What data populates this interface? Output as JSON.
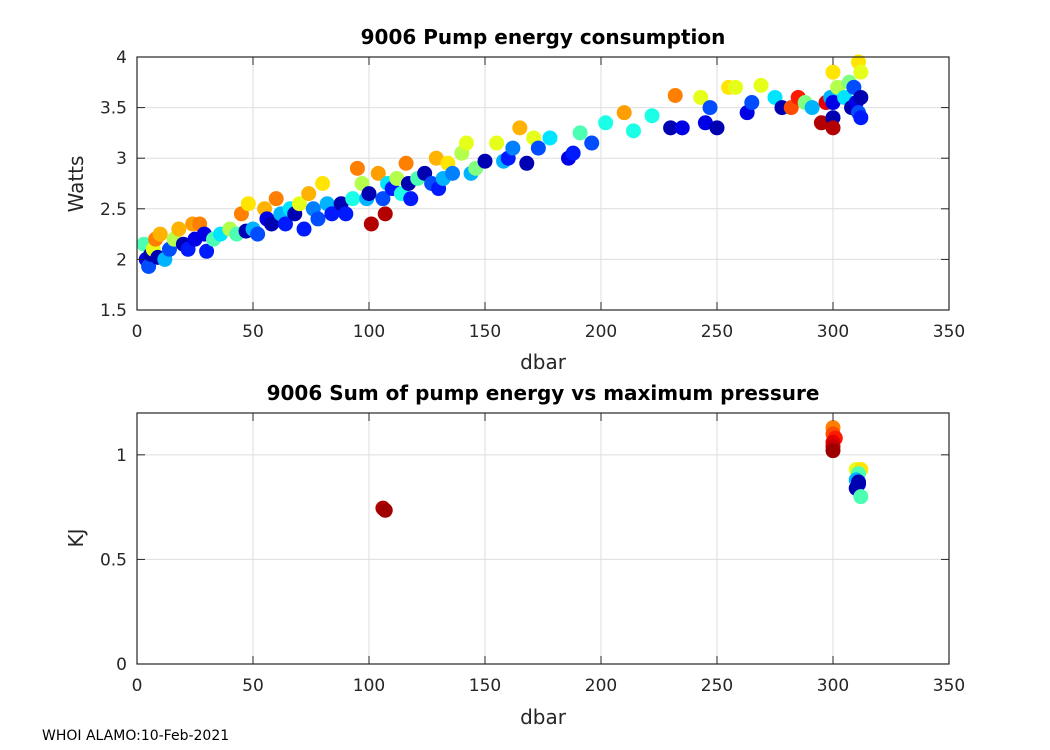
{
  "footer": "WHOI ALAMO:10-Feb-2021",
  "chart_data": [
    {
      "type": "scatter",
      "title": "9006 Pump energy consumption",
      "xlabel": "dbar",
      "ylabel": "Watts",
      "xlim": [
        0,
        350
      ],
      "ylim": [
        1.5,
        4
      ],
      "xticks": [
        0,
        50,
        100,
        150,
        200,
        250,
        300,
        350
      ],
      "yticks": [
        1.5,
        2,
        2.5,
        3,
        3.5,
        4
      ],
      "ytick_labels": [
        "1.5",
        "2",
        "2.5",
        "3",
        "3.5",
        "4"
      ],
      "grid": true,
      "colormap": "jet",
      "points": [
        [
          3,
          2.15,
          0.45
        ],
        [
          4,
          2.0,
          0.1
        ],
        [
          5,
          1.93,
          0.2
        ],
        [
          6,
          2.05,
          0.05
        ],
        [
          7,
          2.1,
          0.6
        ],
        [
          8,
          2.2,
          0.75
        ],
        [
          9,
          2.02,
          0.05
        ],
        [
          10,
          2.25,
          0.7
        ],
        [
          12,
          2.0,
          0.3
        ],
        [
          14,
          2.1,
          0.2
        ],
        [
          16,
          2.2,
          0.55
        ],
        [
          18,
          2.3,
          0.7
        ],
        [
          20,
          2.15,
          0.05
        ],
        [
          22,
          2.1,
          0.15
        ],
        [
          24,
          2.35,
          0.72
        ],
        [
          25,
          2.2,
          0.1
        ],
        [
          27,
          2.35,
          0.75
        ],
        [
          29,
          2.25,
          0.1
        ],
        [
          30,
          2.08,
          0.15
        ],
        [
          33,
          2.2,
          0.45
        ],
        [
          36,
          2.25,
          0.35
        ],
        [
          40,
          2.3,
          0.55
        ],
        [
          43,
          2.25,
          0.45
        ],
        [
          45,
          2.45,
          0.75
        ],
        [
          47,
          2.28,
          0.05
        ],
        [
          48,
          2.55,
          0.65
        ],
        [
          50,
          2.3,
          0.3
        ],
        [
          52,
          2.25,
          0.2
        ],
        [
          55,
          2.5,
          0.7
        ],
        [
          56,
          2.4,
          0.1
        ],
        [
          58,
          2.35,
          0.05
        ],
        [
          60,
          2.6,
          0.75
        ],
        [
          62,
          2.45,
          0.3
        ],
        [
          64,
          2.35,
          0.15
        ],
        [
          66,
          2.5,
          0.35
        ],
        [
          68,
          2.45,
          0.05
        ],
        [
          70,
          2.55,
          0.6
        ],
        [
          72,
          2.3,
          0.15
        ],
        [
          74,
          2.65,
          0.7
        ],
        [
          76,
          2.5,
          0.25
        ],
        [
          78,
          2.4,
          0.2
        ],
        [
          80,
          2.75,
          0.65
        ],
        [
          82,
          2.55,
          0.3
        ],
        [
          84,
          2.45,
          0.15
        ],
        [
          88,
          2.55,
          0.05
        ],
        [
          90,
          2.45,
          0.15
        ],
        [
          93,
          2.6,
          0.4
        ],
        [
          95,
          2.9,
          0.75
        ],
        [
          97,
          2.75,
          0.55
        ],
        [
          99,
          2.6,
          0.3
        ],
        [
          100,
          2.65,
          0.05
        ],
        [
          101,
          2.35,
          0.95
        ],
        [
          104,
          2.85,
          0.72
        ],
        [
          106,
          2.6,
          0.2
        ],
        [
          107,
          2.45,
          0.95
        ],
        [
          108,
          2.75,
          0.35
        ],
        [
          110,
          2.7,
          0.15
        ],
        [
          112,
          2.8,
          0.55
        ],
        [
          114,
          2.65,
          0.4
        ],
        [
          116,
          2.95,
          0.75
        ],
        [
          117,
          2.75,
          0.05
        ],
        [
          118,
          2.6,
          0.15
        ],
        [
          121,
          2.8,
          0.45
        ],
        [
          124,
          2.85,
          0.05
        ],
        [
          127,
          2.75,
          0.2
        ],
        [
          129,
          3.0,
          0.7
        ],
        [
          130,
          2.7,
          0.15
        ],
        [
          132,
          2.8,
          0.3
        ],
        [
          134,
          2.95,
          0.65
        ],
        [
          136,
          2.85,
          0.25
        ],
        [
          140,
          3.05,
          0.55
        ],
        [
          142,
          3.15,
          0.6
        ],
        [
          144,
          2.85,
          0.3
        ],
        [
          146,
          2.9,
          0.5
        ],
        [
          150,
          2.97,
          0.05
        ],
        [
          155,
          3.15,
          0.6
        ],
        [
          158,
          2.97,
          0.3
        ],
        [
          160,
          3.0,
          0.15
        ],
        [
          162,
          3.1,
          0.25
        ],
        [
          165,
          3.3,
          0.7
        ],
        [
          168,
          2.95,
          0.05
        ],
        [
          171,
          3.2,
          0.6
        ],
        [
          173,
          3.1,
          0.2
        ],
        [
          178,
          3.2,
          0.35
        ],
        [
          186,
          3.0,
          0.1
        ],
        [
          188,
          3.05,
          0.15
        ],
        [
          191,
          3.25,
          0.45
        ],
        [
          196,
          3.15,
          0.2
        ],
        [
          202,
          3.35,
          0.4
        ],
        [
          210,
          3.45,
          0.72
        ],
        [
          214,
          3.27,
          0.4
        ],
        [
          222,
          3.42,
          0.4
        ],
        [
          230,
          3.3,
          0.05
        ],
        [
          232,
          3.62,
          0.75
        ],
        [
          235,
          3.3,
          0.1
        ],
        [
          243,
          3.6,
          0.6
        ],
        [
          245,
          3.35,
          0.1
        ],
        [
          247,
          3.5,
          0.2
        ],
        [
          250,
          3.3,
          0.05
        ],
        [
          255,
          3.7,
          0.65
        ],
        [
          258,
          3.7,
          0.6
        ],
        [
          263,
          3.45,
          0.1
        ],
        [
          265,
          3.55,
          0.2
        ],
        [
          269,
          3.72,
          0.6
        ],
        [
          275,
          3.6,
          0.35
        ],
        [
          278,
          3.5,
          0.05
        ],
        [
          282,
          3.5,
          0.8
        ],
        [
          285,
          3.6,
          0.85
        ],
        [
          288,
          3.55,
          0.5
        ],
        [
          291,
          3.5,
          0.3
        ],
        [
          295,
          3.35,
          0.95
        ],
        [
          297,
          3.55,
          0.9
        ],
        [
          299,
          3.6,
          0.3
        ],
        [
          300,
          3.4,
          0.05
        ],
        [
          300,
          3.3,
          0.95
        ],
        [
          300,
          3.85,
          0.65
        ],
        [
          300,
          3.55,
          0.1
        ],
        [
          302,
          3.7,
          0.55
        ],
        [
          305,
          3.6,
          0.35
        ],
        [
          307,
          3.75,
          0.5
        ],
        [
          308,
          3.5,
          0.05
        ],
        [
          309,
          3.7,
          0.2
        ],
        [
          310,
          3.55,
          0.1
        ],
        [
          311,
          3.95,
          0.65
        ],
        [
          311,
          3.45,
          0.2
        ],
        [
          312,
          3.85,
          0.6
        ],
        [
          312,
          3.6,
          0.05
        ],
        [
          312,
          3.4,
          0.15
        ]
      ],
      "point_note": "each point is [dbar, watts, color_index 0-1 on jet colormap]"
    },
    {
      "type": "scatter",
      "title": "9006 Sum of pump energy vs maximum pressure",
      "xlabel": "dbar",
      "ylabel": "KJ",
      "xlim": [
        0,
        350
      ],
      "ylim": [
        0,
        1.2
      ],
      "xticks": [
        0,
        50,
        100,
        150,
        200,
        250,
        300,
        350
      ],
      "yticks": [
        0,
        0.5,
        1
      ],
      "ytick_labels": [
        "0",
        "0.5",
        "1"
      ],
      "grid": true,
      "colormap": "jet",
      "points": [
        [
          106,
          0.745,
          0.95
        ],
        [
          107,
          0.735,
          0.97
        ],
        [
          300,
          1.13,
          0.75
        ],
        [
          300,
          1.1,
          0.8
        ],
        [
          301,
          1.08,
          0.85
        ],
        [
          300,
          1.06,
          0.9
        ],
        [
          300,
          1.04,
          0.93
        ],
        [
          300,
          1.02,
          0.97
        ],
        [
          310,
          0.93,
          0.6
        ],
        [
          312,
          0.93,
          0.65
        ],
        [
          311,
          0.91,
          0.45
        ],
        [
          310,
          0.88,
          0.3
        ],
        [
          311,
          0.86,
          0.1
        ],
        [
          310,
          0.84,
          0.05
        ],
        [
          311,
          0.87,
          0.05
        ],
        [
          312,
          0.8,
          0.45
        ]
      ],
      "point_note": "each point is [dbar, KJ, color_index 0-1 on jet colormap]"
    }
  ]
}
